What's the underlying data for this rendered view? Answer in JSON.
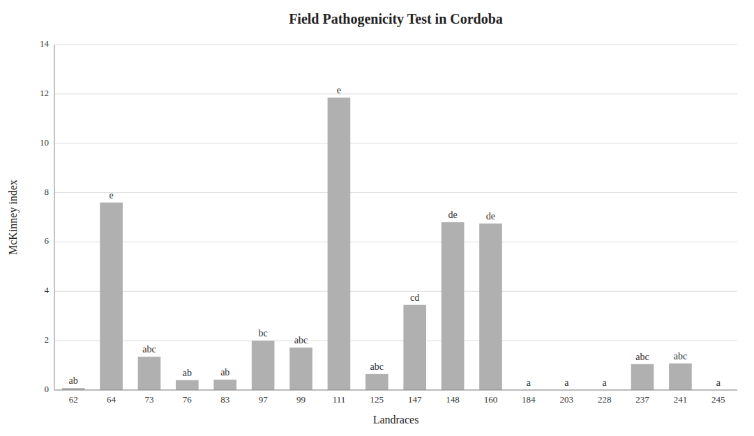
{
  "chart_data": {
    "type": "bar",
    "title": "Field Pathogenicity Test in Cordoba",
    "xlabel": "Landraces",
    "ylabel": "McKinney index",
    "categories": [
      "62",
      "64",
      "73",
      "76",
      "83",
      "97",
      "99",
      "111",
      "125",
      "147",
      "148",
      "160",
      "184",
      "203",
      "228",
      "237",
      "241",
      "245"
    ],
    "values": [
      0.08,
      7.6,
      1.35,
      0.4,
      0.42,
      2.0,
      1.72,
      11.85,
      0.65,
      3.45,
      6.8,
      6.75,
      0.0,
      0.0,
      0.0,
      1.05,
      1.08,
      0.0
    ],
    "annotations": [
      "ab",
      "e",
      "abc",
      "ab",
      "ab",
      "bc",
      "abc",
      "e",
      "abc",
      "cd",
      "de",
      "de",
      "a",
      "a",
      "a",
      "abc",
      "abc",
      "a"
    ],
    "color": "#b0b0b0",
    "ylim": [
      0,
      14
    ],
    "yticks": [
      0,
      2,
      4,
      6,
      8,
      10,
      12,
      14
    ],
    "grid": true
  }
}
